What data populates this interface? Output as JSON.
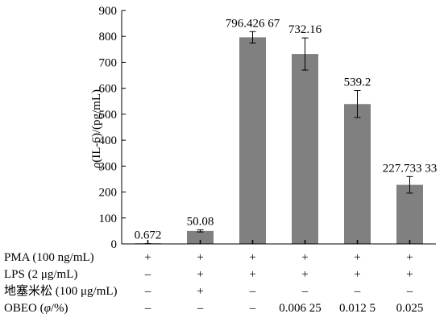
{
  "chart_data": {
    "type": "bar",
    "ylabel_parts": {
      "italic": "ρ",
      "rest": "(IL-6)/(pg/mL)"
    },
    "ylim": [
      0,
      900
    ],
    "yticks": [
      "0",
      "100",
      "200",
      "300",
      "400",
      "500",
      "600",
      "700",
      "800",
      "900"
    ],
    "grid": false,
    "legend": "none",
    "bar_color": "#808080",
    "series": [
      {
        "values": [
          0.672,
          50.08,
          796.42667,
          732.16,
          539.2,
          227.73333
        ],
        "errors": [
          0.5,
          4,
          22,
          62,
          52,
          32
        ]
      }
    ],
    "data_labels": [
      "0.672",
      "50.08",
      "796.426 67",
      "732.16",
      "539.2",
      "227.733 33"
    ],
    "treatment_table": {
      "rows": [
        {
          "label": "PMA (100 ng/mL)",
          "marks": [
            "+",
            "+",
            "+",
            "+",
            "+",
            "+"
          ]
        },
        {
          "label": "LPS (2 μg/mL)",
          "marks": [
            "–",
            "+",
            "+",
            "+",
            "+",
            "+"
          ]
        },
        {
          "label": "地塞米松 (100 μg/mL)",
          "marks": [
            "–",
            "+",
            "–",
            "–",
            "–",
            "–"
          ]
        },
        {
          "label_italic": "φ",
          "label_prefix": "OBEO (",
          "label_suffix": "/%)",
          "marks": [
            "–",
            "–",
            "–",
            "0.006 25",
            "0.012 5",
            "0.025"
          ]
        }
      ]
    }
  }
}
